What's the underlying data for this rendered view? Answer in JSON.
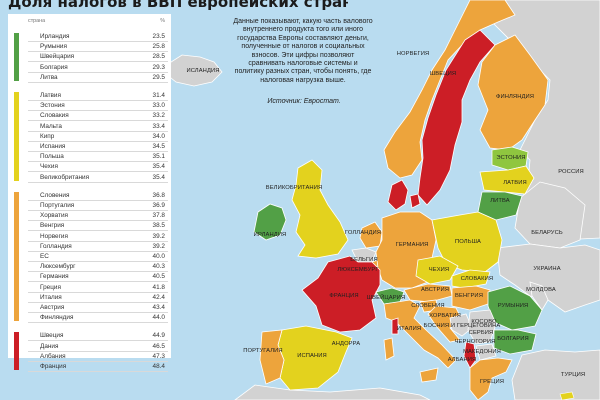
{
  "title": "Доля налогов в ВВП европейских стран",
  "description": "Данные показывают, какую часть валового внутреннего продукта того или иного государства Европы составляют деньги, полученные от налогов и социальных взносов. Эти цифры позволяют сравнивать налоговые системы и политику разных стран, чтобы понять, где налоговая нагрузка выше.",
  "source": "Источник: Евростат.",
  "table": {
    "header_country": "страна",
    "header_unit": "%",
    "groups": [
      {
        "color": "#52a046",
        "rows": [
          {
            "country": "Ирландия",
            "value": "23.5"
          },
          {
            "country": "Румыния",
            "value": "25.8"
          },
          {
            "country": "Швейцария",
            "value": "28.5"
          },
          {
            "country": "Болгария",
            "value": "29.3"
          },
          {
            "country": "Литва",
            "value": "29.5"
          }
        ]
      },
      {
        "color": "#e3d21e",
        "rows": [
          {
            "country": "Латвия",
            "value": "31.4"
          },
          {
            "country": "Эстония",
            "value": "33.0"
          },
          {
            "country": "Словакия",
            "value": "33.2"
          },
          {
            "country": "Мальта",
            "value": "33.4"
          },
          {
            "country": "Кипр",
            "value": "34.0"
          },
          {
            "country": "Испания",
            "value": "34.5"
          },
          {
            "country": "Польша",
            "value": "35.1"
          },
          {
            "country": "Чехия",
            "value": "35.4"
          },
          {
            "country": "Великобритания",
            "value": "35.4"
          }
        ]
      },
      {
        "color": "#eda43c",
        "rows": [
          {
            "country": "Словения",
            "value": "36.8"
          },
          {
            "country": "Португалия",
            "value": "36.9"
          },
          {
            "country": "Хорватия",
            "value": "37.8"
          },
          {
            "country": "Венгрия",
            "value": "38.5"
          },
          {
            "country": "Норвегия",
            "value": "39.2"
          },
          {
            "country": "Голландия",
            "value": "39.2"
          },
          {
            "country": "ЕС",
            "value": "40.0"
          },
          {
            "country": "Люксембург",
            "value": "40.3"
          },
          {
            "country": "Германия",
            "value": "40.5"
          },
          {
            "country": "Греция",
            "value": "41.8"
          },
          {
            "country": "Италия",
            "value": "42.4"
          },
          {
            "country": "Австрия",
            "value": "43.4"
          },
          {
            "country": "Финляндия",
            "value": "44.0"
          }
        ]
      },
      {
        "color": "#cc1e26",
        "rows": [
          {
            "country": "Швеция",
            "value": "44.9"
          },
          {
            "country": "Дания",
            "value": "46.5"
          },
          {
            "country": "Албания",
            "value": "47.3"
          },
          {
            "country": "Франция",
            "value": "48.4"
          }
        ]
      }
    ]
  },
  "map_labels": {
    "iceland": "ИСЛАНДИЯ",
    "norway": "НОРВЕГИЯ",
    "sweden": "ШВЕЦИЯ",
    "finland": "ФИНЛЯНДИЯ",
    "estonia": "ЭСТОНИЯ",
    "latvia": "ЛАТВИЯ",
    "lithuania": "ЛИТВА",
    "russia": "РОССИЯ",
    "belarus": "БЕЛАРУСЬ",
    "uk": "ВЕЛИКОБРИТАНИЯ",
    "ireland": "ИРЛАНДИЯ",
    "denmark": "ДАНИЯ",
    "netherlands": "ГОЛЛАНДИЯ",
    "germany": "ГЕРМАНИЯ",
    "poland": "ПОЛЬША",
    "belgium": "БЕЛЬГИЯ",
    "luxembourg": "ЛЮКСЕМБУРГ",
    "czech": "ЧЕХИЯ",
    "slovakia": "СЛОВАКИЯ",
    "ukraine": "УКРАИНА",
    "moldova": "МОЛДОВА",
    "france": "ФРАНЦИЯ",
    "switzerland": "ШВЕЙЦАРИЯ",
    "austria": "АВСТРИЯ",
    "hungary": "ВЕНГРИЯ",
    "romania": "РУМЫНИЯ",
    "slovenia": "СЛОВЕНИЯ",
    "croatia": "ХОРВАТИЯ",
    "bosnia": "БОСНИЯ И ГЕРЦЕГОВИНА",
    "serbia": "СЕРБИЯ",
    "bulgaria": "БОЛГАРИЯ",
    "italy": "ИТАЛИЯ",
    "andorra": "АНДОРРА",
    "portugal": "ПОРТУГАЛИЯ",
    "spain": "ИСПАНИЯ",
    "greece": "ГРЕЦИЯ",
    "turkey": "ТУРЦИЯ",
    "albania": "АЛБАНИЯ",
    "montenegro": "ЧЕРНОГОРИЯ",
    "macedonia": "МАКЕДОНИЯ",
    "kosovo": "КОСОВО"
  },
  "colors": {
    "sea": "#b9dcf0",
    "neutral_land": "#d2d2d2",
    "green": "#52a046",
    "yellow": "#e3d21e",
    "orange": "#eda43c",
    "red": "#cc1e26"
  }
}
